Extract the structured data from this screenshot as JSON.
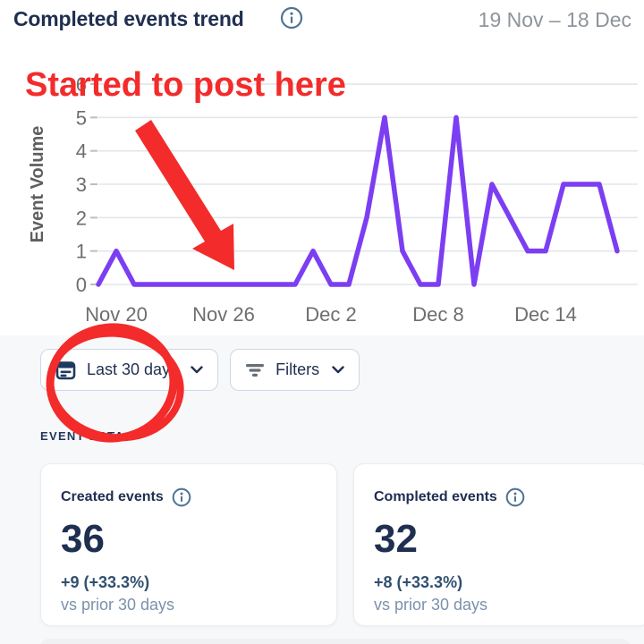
{
  "header": {
    "title": "Completed events trend",
    "date_range": "19 Nov – 18 Dec"
  },
  "annotations": {
    "note": "Started to post here",
    "annotation_color": "#f32b2b"
  },
  "chart_data": {
    "type": "line",
    "title": "Completed events trend",
    "xlabel": "",
    "ylabel": "Event Volume",
    "ylim": [
      0,
      6
    ],
    "y_ticks": [
      0,
      1,
      2,
      3,
      4,
      5,
      6
    ],
    "grid": "horizontal",
    "legend": "none",
    "line_color": "#7c3ef2",
    "x": [
      "Nov 19",
      "Nov 20",
      "Nov 21",
      "Nov 22",
      "Nov 23",
      "Nov 24",
      "Nov 25",
      "Nov 26",
      "Nov 27",
      "Nov 28",
      "Nov 29",
      "Nov 30",
      "Dec 1",
      "Dec 2",
      "Dec 3",
      "Dec 4",
      "Dec 5",
      "Dec 6",
      "Dec 7",
      "Dec 8",
      "Dec 9",
      "Dec 10",
      "Dec 11",
      "Dec 12",
      "Dec 13",
      "Dec 14",
      "Dec 15",
      "Dec 16",
      "Dec 17",
      "Dec 18"
    ],
    "values": [
      0,
      1,
      0,
      0,
      0,
      0,
      0,
      0,
      0,
      0,
      0,
      0,
      1,
      0,
      0,
      2,
      5,
      1,
      0,
      0,
      5,
      0,
      3,
      2,
      1,
      1,
      3,
      3,
      3,
      1
    ],
    "x_ticks": [
      {
        "label": "Nov 20",
        "index": 1
      },
      {
        "label": "Nov 26",
        "index": 7
      },
      {
        "label": "Dec 2",
        "index": 13
      },
      {
        "label": "Dec 8",
        "index": 19
      },
      {
        "label": "Dec 14",
        "index": 25
      }
    ]
  },
  "controls": {
    "date_filter_label": "Last 30 days",
    "date_filter_icon": "calendar-icon",
    "filters_label": "Filters",
    "filters_icon": "filter-icon"
  },
  "section": {
    "label": "EVENT DATA"
  },
  "cards": [
    {
      "title": "Created events",
      "value": "36",
      "delta": "+9 (+33.3%)",
      "compare": "vs prior 30 days"
    },
    {
      "title": "Completed events",
      "value": "32",
      "delta": "+8 (+33.3%)",
      "compare": "vs prior 30 days"
    }
  ],
  "colors": {
    "navy": "#1f2f50",
    "line_purple": "#7c3ef2",
    "annotation_red": "#f32b2b",
    "axis_gray": "#6e6e6e",
    "date_gray": "#8e949b",
    "section_bg": "#f7f8f9",
    "delta_text": "#31506f",
    "compare_text": "#7b91ac",
    "info_icon": "#4f7396",
    "button_border": "#ccd9e4"
  }
}
